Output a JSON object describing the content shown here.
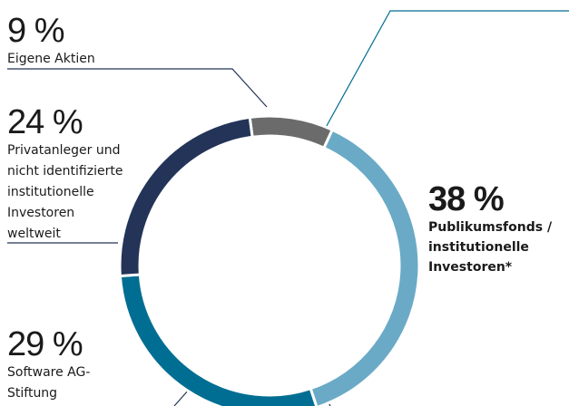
{
  "chart_data": {
    "type": "donut",
    "categories": [
      "Eigene Aktien",
      "Publikumsfonds /\ninstitutionelle\nInvestoren*",
      "Software AG-\nStiftung",
      "Privatanleger und\nnicht identifizierte\ninstitutionelle\nInvestoren\nweltweit"
    ],
    "values": [
      9,
      38,
      29,
      24
    ],
    "value_labels": [
      "9 %",
      "38 %",
      "29 %",
      "24 %"
    ],
    "colors": [
      "#6b6b6b",
      "#6aaac6",
      "#006e92",
      "#233458"
    ]
  }
}
